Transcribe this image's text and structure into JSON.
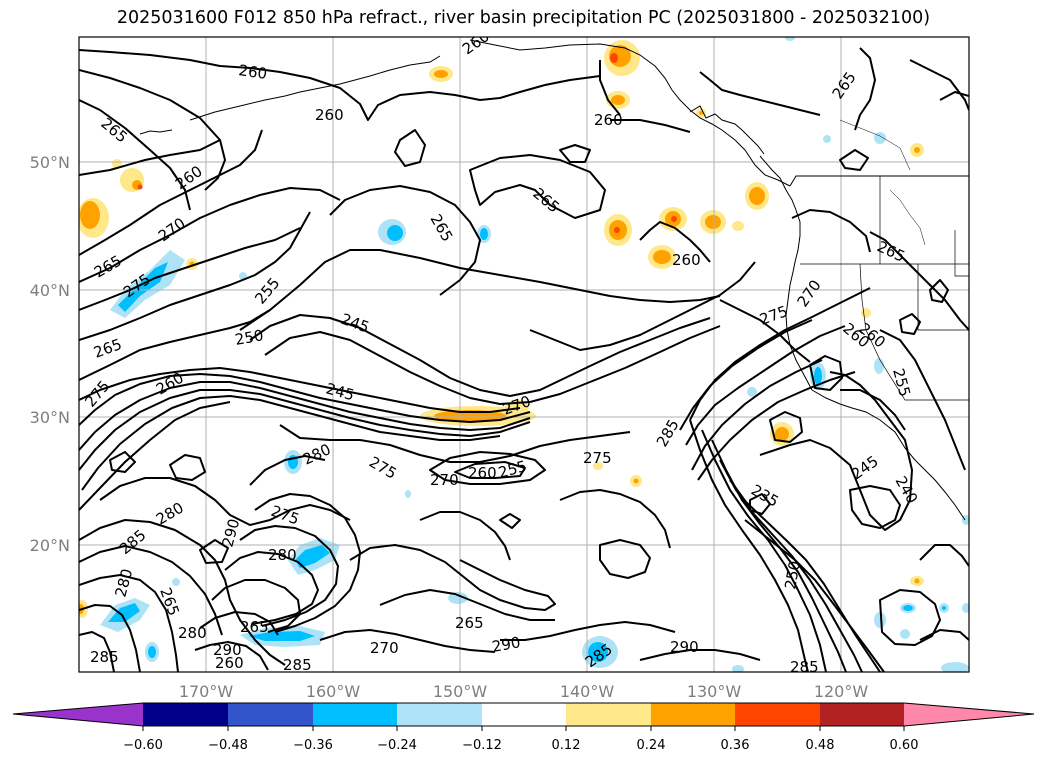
{
  "title": "2025031600 F012 850 hPa refract., river basin precipitation PC (2025031800 - 2025032100)",
  "map": {
    "lat_labels": [
      "50°N",
      "40°N",
      "30°N",
      "20°N"
    ],
    "lon_labels": [
      "170°W",
      "160°W",
      "150°W",
      "140°W",
      "130°W",
      "120°W"
    ],
    "contour_labels": [
      {
        "text": "260"
      },
      {
        "text": "260"
      },
      {
        "text": "260"
      },
      {
        "text": "260"
      },
      {
        "text": "265"
      },
      {
        "text": "265"
      },
      {
        "text": "260"
      },
      {
        "text": "270"
      },
      {
        "text": "265"
      },
      {
        "text": "275"
      },
      {
        "text": "265"
      },
      {
        "text": "265"
      },
      {
        "text": "260"
      },
      {
        "text": "255"
      },
      {
        "text": "250"
      },
      {
        "text": "245"
      },
      {
        "text": "245"
      },
      {
        "text": "260"
      },
      {
        "text": "265"
      },
      {
        "text": "275"
      },
      {
        "text": "270"
      },
      {
        "text": "260"
      },
      {
        "text": "255"
      },
      {
        "text": "280"
      },
      {
        "text": "275"
      },
      {
        "text": "270"
      },
      {
        "text": "260"
      },
      {
        "text": "265"
      },
      {
        "text": "275"
      },
      {
        "text": "280"
      },
      {
        "text": "290"
      },
      {
        "text": "285"
      },
      {
        "text": "280"
      },
      {
        "text": "280"
      },
      {
        "text": "275"
      },
      {
        "text": "280"
      },
      {
        "text": "290"
      },
      {
        "text": "265"
      },
      {
        "text": "270"
      },
      {
        "text": "265"
      },
      {
        "text": "290"
      },
      {
        "text": "285"
      },
      {
        "text": "285"
      },
      {
        "text": "285"
      },
      {
        "text": "290"
      },
      {
        "text": "285"
      },
      {
        "text": "275"
      },
      {
        "text": "270"
      },
      {
        "text": "260"
      },
      {
        "text": "255"
      },
      {
        "text": "245"
      },
      {
        "text": "240"
      },
      {
        "text": "235"
      },
      {
        "text": "250"
      },
      {
        "text": "285"
      },
      {
        "text": "265"
      },
      {
        "text": "260"
      }
    ]
  },
  "colorbar": {
    "ticks": [
      "−0.60",
      "−0.48",
      "−0.36",
      "−0.24",
      "−0.12",
      "0.12",
      "0.24",
      "0.36",
      "0.48",
      "0.60"
    ],
    "colors": [
      "#9933cc",
      "#00008b",
      "#3355cc",
      "#00bfff",
      "#aee3f7",
      "#ffffff",
      "#ffe88a",
      "#ffa200",
      "#ff4500",
      "#b22222",
      "#ff88aa"
    ]
  },
  "colors": {
    "grid": "#b0b0b0",
    "contour": "#000000",
    "axis_label": "#7f7f7f"
  }
}
